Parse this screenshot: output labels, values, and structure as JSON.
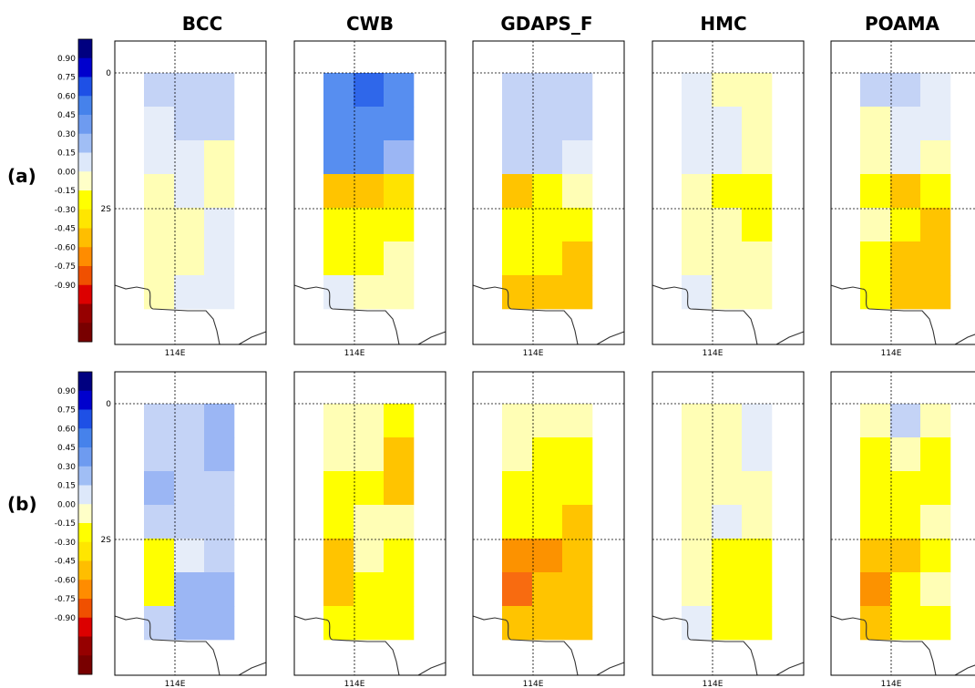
{
  "models": [
    "BCC",
    "CWB",
    "GDAPS_F",
    "HMC",
    "POAMA"
  ],
  "row_labels": [
    "(a)",
    "(b)"
  ],
  "lat_ticks": [
    "0",
    "2S"
  ],
  "lon_tick": "114E",
  "colorbar": {
    "colors": [
      "#000080",
      "#0000cd",
      "#1e50e6",
      "#4682eb",
      "#6e9bf0",
      "#a0bef5",
      "#dde8fa",
      "#ffffc8",
      "#ffff00",
      "#ffe600",
      "#ffbe00",
      "#ff8c00",
      "#f05000",
      "#dc0000",
      "#960000",
      "#780000"
    ],
    "labels": [
      "0.90",
      "0.75",
      "0.60",
      "0.45",
      "0.30",
      "0.15",
      "0.00",
      "-0.15",
      "-0.30",
      "-0.45",
      "-0.60",
      "-0.75",
      "-0.90"
    ]
  },
  "palette": {
    "g": "#e6edf9",
    "l": "#c4d3f6",
    "m": "#9bb6f4",
    "b": "#578ef0",
    "d": "#3f78ec",
    "v": "#2f67ea",
    "p": "#fffeb5",
    "y": "#ffff00",
    "s": "#ffe300",
    "o": "#ffc400",
    "r": "#fc9200",
    "e": "#f86b10"
  },
  "grids": [
    [
      [
        "l",
        "l",
        "l",
        "g",
        "g",
        "g"
      ],
      [
        "g",
        "l",
        "l",
        "g",
        "g",
        "g"
      ],
      [
        "g",
        "g",
        "p",
        "g",
        "g",
        "g"
      ],
      [
        "p",
        "g",
        "p",
        "g",
        "g",
        "g"
      ],
      [
        "p",
        "p",
        "g",
        "g",
        "g",
        "g"
      ],
      [
        "p",
        "p",
        "g",
        "g",
        "g",
        "g"
      ],
      [
        "p",
        "g",
        "g",
        "g",
        "g",
        "g"
      ]
    ],
    [
      [
        "b",
        "v",
        "b",
        "l",
        "l",
        "l"
      ],
      [
        "b",
        "b",
        "b",
        "g",
        "g",
        "g"
      ],
      [
        "b",
        "b",
        "m",
        "g",
        "g",
        "g"
      ],
      [
        "o",
        "o",
        "s",
        "g",
        "g",
        "g"
      ],
      [
        "y",
        "y",
        "y",
        "g",
        "g",
        "g"
      ],
      [
        "y",
        "y",
        "p",
        "g",
        "g",
        "g"
      ],
      [
        "g",
        "p",
        "p",
        "g",
        "g",
        "g"
      ]
    ],
    [
      [
        "l",
        "l",
        "l",
        "g",
        "g",
        "g"
      ],
      [
        "l",
        "l",
        "l",
        "g",
        "g",
        "g"
      ],
      [
        "l",
        "l",
        "g",
        "g",
        "g",
        "g"
      ],
      [
        "o",
        "y",
        "p",
        "g",
        "g",
        "g"
      ],
      [
        "y",
        "y",
        "y",
        "g",
        "g",
        "g"
      ],
      [
        "y",
        "y",
        "o",
        "g",
        "g",
        "g"
      ],
      [
        "o",
        "o",
        "o",
        "g",
        "g",
        "g"
      ]
    ],
    [
      [
        "g",
        "p",
        "p",
        "g",
        "g",
        "g"
      ],
      [
        "g",
        "g",
        "p",
        "g",
        "g",
        "g"
      ],
      [
        "g",
        "g",
        "p",
        "g",
        "g",
        "g"
      ],
      [
        "p",
        "y",
        "y",
        "g",
        "g",
        "g"
      ],
      [
        "p",
        "p",
        "y",
        "g",
        "g",
        "g"
      ],
      [
        "p",
        "p",
        "p",
        "g",
        "g",
        "g"
      ],
      [
        "g",
        "p",
        "p",
        "g",
        "g",
        "g"
      ]
    ],
    [
      [
        "l",
        "l",
        "g",
        "g",
        "g",
        "g"
      ],
      [
        "p",
        "g",
        "g",
        "g",
        "g",
        "g"
      ],
      [
        "p",
        "g",
        "p",
        "g",
        "g",
        "g"
      ],
      [
        "y",
        "o",
        "y",
        "g",
        "g",
        "g"
      ],
      [
        "p",
        "y",
        "o",
        "g",
        "g",
        "g"
      ],
      [
        "y",
        "o",
        "o",
        "g",
        "g",
        "g"
      ],
      [
        "y",
        "o",
        "o",
        "g",
        "g",
        "g"
      ]
    ],
    [
      [
        "l",
        "l",
        "m",
        "g",
        "g",
        "g"
      ],
      [
        "l",
        "l",
        "m",
        "g",
        "g",
        "g"
      ],
      [
        "m",
        "l",
        "l",
        "g",
        "g",
        "g"
      ],
      [
        "l",
        "l",
        "l",
        "g",
        "g",
        "g"
      ],
      [
        "y",
        "g",
        "l",
        "g",
        "g",
        "g"
      ],
      [
        "y",
        "m",
        "m",
        "g",
        "g",
        "g"
      ],
      [
        "l",
        "m",
        "m",
        "g",
        "g",
        "g"
      ]
    ],
    [
      [
        "p",
        "p",
        "y",
        "g",
        "g",
        "g"
      ],
      [
        "p",
        "p",
        "o",
        "g",
        "g",
        "g"
      ],
      [
        "y",
        "y",
        "o",
        "g",
        "g",
        "g"
      ],
      [
        "y",
        "p",
        "p",
        "g",
        "g",
        "g"
      ],
      [
        "o",
        "p",
        "y",
        "g",
        "g",
        "g"
      ],
      [
        "o",
        "y",
        "y",
        "g",
        "g",
        "g"
      ],
      [
        "y",
        "y",
        "y",
        "g",
        "g",
        "g"
      ]
    ],
    [
      [
        "p",
        "p",
        "p",
        "g",
        "g",
        "g"
      ],
      [
        "p",
        "y",
        "y",
        "g",
        "g",
        "g"
      ],
      [
        "y",
        "y",
        "y",
        "g",
        "g",
        "g"
      ],
      [
        "y",
        "y",
        "o",
        "g",
        "g",
        "g"
      ],
      [
        "r",
        "r",
        "o",
        "g",
        "g",
        "g"
      ],
      [
        "e",
        "o",
        "o",
        "g",
        "g",
        "g"
      ],
      [
        "o",
        "o",
        "o",
        "g",
        "g",
        "g"
      ]
    ],
    [
      [
        "p",
        "p",
        "g",
        "g",
        "g",
        "g"
      ],
      [
        "p",
        "p",
        "g",
        "g",
        "g",
        "g"
      ],
      [
        "p",
        "p",
        "p",
        "g",
        "g",
        "g"
      ],
      [
        "p",
        "g",
        "p",
        "g",
        "g",
        "g"
      ],
      [
        "p",
        "y",
        "y",
        "g",
        "g",
        "g"
      ],
      [
        "p",
        "y",
        "y",
        "g",
        "g",
        "g"
      ],
      [
        "g",
        "y",
        "y",
        "g",
        "g",
        "g"
      ]
    ],
    [
      [
        "p",
        "l",
        "p",
        "g",
        "g",
        "g"
      ],
      [
        "y",
        "p",
        "y",
        "g",
        "g",
        "g"
      ],
      [
        "y",
        "y",
        "y",
        "g",
        "g",
        "g"
      ],
      [
        "y",
        "y",
        "p",
        "g",
        "g",
        "g"
      ],
      [
        "o",
        "o",
        "y",
        "g",
        "g",
        "g"
      ],
      [
        "r",
        "y",
        "p",
        "g",
        "g",
        "g"
      ],
      [
        "o",
        "y",
        "y",
        "g",
        "g",
        "g"
      ]
    ]
  ]
}
